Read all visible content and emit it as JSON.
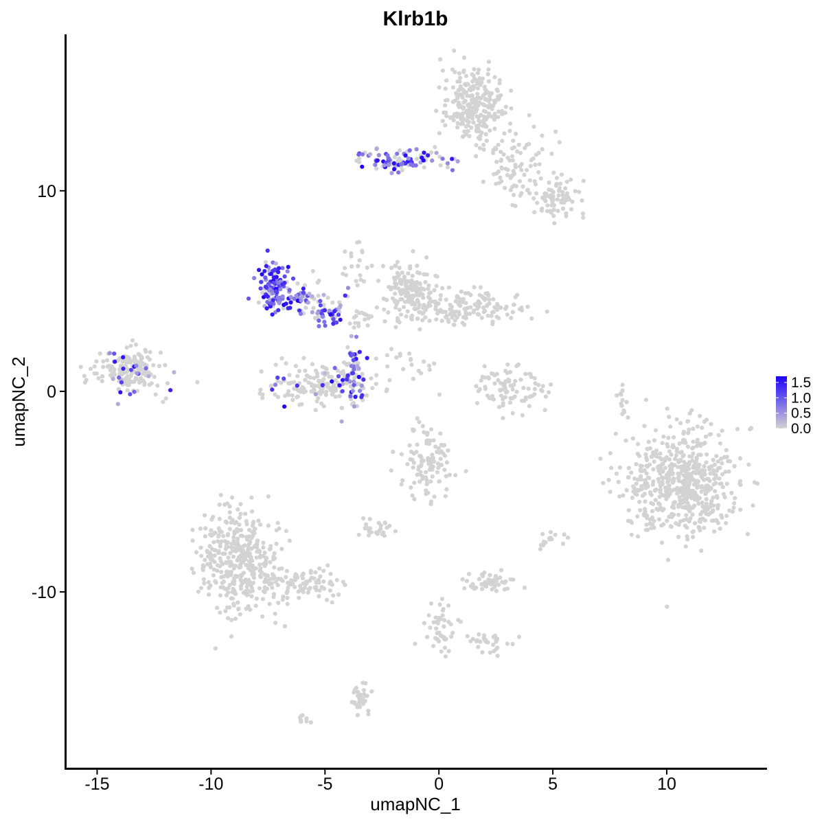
{
  "chart_data": {
    "type": "scatter",
    "title": "Klrb1b",
    "xlabel": "umapNC_1",
    "ylabel": "umapNC_2",
    "xlim": [
      -16.4,
      14.4
    ],
    "ylim": [
      -18.8,
      17.8
    ],
    "x_ticks": [
      -15,
      -10,
      -5,
      0,
      5,
      10
    ],
    "x_tick_labels": [
      "-15",
      "-10",
      "-5",
      "0",
      "5",
      "10"
    ],
    "y_ticks": [
      -10,
      0,
      10
    ],
    "y_tick_labels": [
      "-10",
      "0",
      "10"
    ],
    "grid": false,
    "legend_position": "right",
    "color_scale": {
      "low": "#d3d3d3",
      "high": "#1c00ff",
      "min": 0,
      "max": 1.7,
      "breaks": [
        1.5,
        1.0,
        0.5,
        0.0
      ],
      "break_labels": [
        "1.5",
        "1.0",
        "0.5",
        "0.0"
      ]
    },
    "clusters": [
      {
        "cx": 1.5,
        "cy": 14.2,
        "sx": 0.7,
        "sy": 1.0,
        "n": 260,
        "expr": 0
      },
      {
        "cx": 3.5,
        "cy": 11.2,
        "sx": 0.9,
        "sy": 0.9,
        "n": 90,
        "expr": 0
      },
      {
        "cx": 5.2,
        "cy": 9.6,
        "sx": 0.6,
        "sy": 0.5,
        "n": 70,
        "expr": 0
      },
      {
        "cx": -1.6,
        "cy": 11.5,
        "sx": 1.0,
        "sy": 0.3,
        "n": 110,
        "expr": 0.55
      },
      {
        "cx": -7.2,
        "cy": 5.2,
        "sx": 0.35,
        "sy": 0.6,
        "n": 110,
        "expr": 0.85
      },
      {
        "cx": -6.0,
        "cy": 4.6,
        "sx": 0.9,
        "sy": 0.5,
        "n": 70,
        "expr": 0.6
      },
      {
        "cx": -4.9,
        "cy": 3.8,
        "sx": 0.4,
        "sy": 0.3,
        "n": 40,
        "expr": 0.7
      },
      {
        "cx": -3.7,
        "cy": 1.0,
        "sx": 0.25,
        "sy": 0.9,
        "n": 60,
        "expr": 0.65
      },
      {
        "cx": -5.0,
        "cy": 0.3,
        "sx": 1.2,
        "sy": 0.45,
        "n": 170,
        "expr": 0.08
      },
      {
        "cx": -13.6,
        "cy": 1.0,
        "sx": 0.7,
        "sy": 0.6,
        "n": 180,
        "expr": 0.12
      },
      {
        "cx": -1.2,
        "cy": 4.9,
        "sx": 0.6,
        "sy": 0.8,
        "n": 150,
        "expr": 0
      },
      {
        "cx": 1.1,
        "cy": 4.2,
        "sx": 1.3,
        "sy": 0.4,
        "n": 150,
        "expr": 0
      },
      {
        "cx": 3.1,
        "cy": 0.2,
        "sx": 0.8,
        "sy": 0.6,
        "n": 90,
        "expr": 0
      },
      {
        "cx": 8.1,
        "cy": -0.3,
        "sx": 0.1,
        "sy": 0.5,
        "n": 12,
        "expr": 0
      },
      {
        "cx": 10.7,
        "cy": -4.5,
        "sx": 1.2,
        "sy": 1.3,
        "n": 600,
        "expr": 0
      },
      {
        "cx": -0.5,
        "cy": -3.6,
        "sx": 0.6,
        "sy": 0.9,
        "n": 110,
        "expr": 0
      },
      {
        "cx": -8.8,
        "cy": -8.4,
        "sx": 0.9,
        "sy": 1.3,
        "n": 380,
        "expr": 0
      },
      {
        "cx": -6.0,
        "cy": -9.6,
        "sx": 0.9,
        "sy": 0.4,
        "n": 90,
        "expr": 0
      },
      {
        "cx": 2.4,
        "cy": -9.5,
        "sx": 0.5,
        "sy": 0.25,
        "n": 50,
        "expr": 0
      },
      {
        "cx": 0.1,
        "cy": -11.8,
        "sx": 0.5,
        "sy": 0.7,
        "n": 45,
        "expr": 0
      },
      {
        "cx": 2.2,
        "cy": -12.6,
        "sx": 0.4,
        "sy": 0.3,
        "n": 30,
        "expr": 0
      },
      {
        "cx": -3.4,
        "cy": -15.2,
        "sx": 0.2,
        "sy": 0.6,
        "n": 30,
        "expr": 0
      },
      {
        "cx": -2.6,
        "cy": -6.9,
        "sx": 0.4,
        "sy": 0.25,
        "n": 25,
        "expr": 0.04
      },
      {
        "cx": -3.5,
        "cy": 6.5,
        "sx": 0.3,
        "sy": 0.7,
        "n": 20,
        "expr": 0
      },
      {
        "cx": -3.3,
        "cy": 3.8,
        "sx": 0.3,
        "sy": 0.4,
        "n": 18,
        "expr": 0
      },
      {
        "cx": -1.7,
        "cy": 1.2,
        "sx": 0.5,
        "sy": 0.3,
        "n": 20,
        "expr": 0.03
      },
      {
        "cx": 4.9,
        "cy": -7.4,
        "sx": 0.3,
        "sy": 0.2,
        "n": 15,
        "expr": 0
      },
      {
        "cx": -6.0,
        "cy": -16.3,
        "sx": 0.2,
        "sy": 0.1,
        "n": 8,
        "expr": 0
      }
    ]
  }
}
